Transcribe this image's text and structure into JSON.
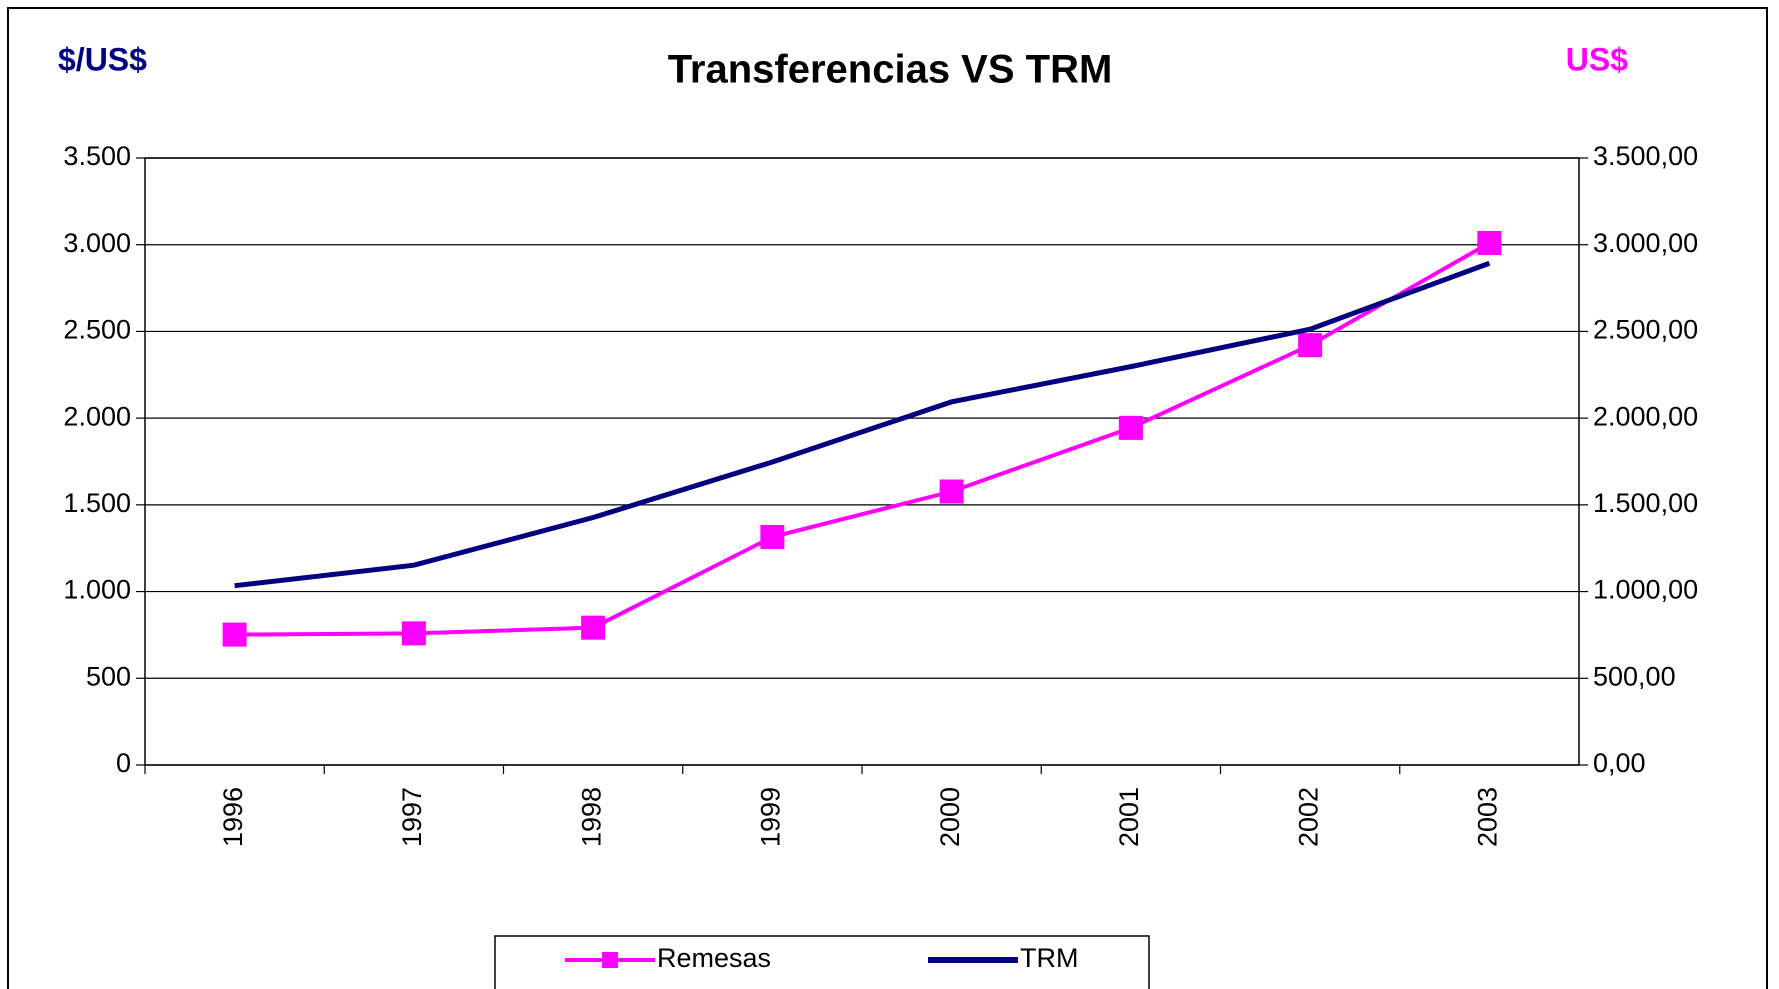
{
  "chart_data": {
    "type": "line",
    "title": "Transferencias VS TRM",
    "y_label": "$/US$",
    "y2_label": "US$",
    "categories": [
      "1996",
      "1997",
      "1998",
      "1999",
      "2000",
      "2001",
      "2002",
      "2003"
    ],
    "series": [
      {
        "name": "Remesas",
        "color": "#ff00ff",
        "axis": "y2",
        "marker": "square",
        "values": [
          752,
          759,
          792,
          1315,
          1577,
          1944,
          2421,
          3010
        ]
      },
      {
        "name": "TRM",
        "color": "#000080",
        "axis": "y",
        "values": [
          1034,
          1152,
          1427,
          1747,
          2094,
          2297,
          2513,
          2893
        ]
      }
    ],
    "ylim": [
      0,
      3500
    ],
    "yticks": [
      0,
      500,
      {
        "value": 1000,
        "label": "1.000"
      },
      {
        "value": 1500,
        "label": "1.500"
      },
      {
        "value": 2000,
        "label": "2.000"
      },
      {
        "value": 2500,
        "label": "2.500"
      },
      {
        "value": 3000,
        "label": "3.000"
      },
      {
        "value": 3500,
        "label": "3.500"
      }
    ],
    "y2lim": [
      0,
      3500
    ],
    "y2ticks": [
      {
        "value": 0,
        "label": "0,00"
      },
      {
        "value": 500,
        "label": "500,00"
      },
      {
        "value": 1000,
        "label": "1.000,00"
      },
      {
        "value": 1500,
        "label": "1.500,00"
      },
      {
        "value": 2000,
        "label": "2.000,00"
      },
      {
        "value": 2500,
        "label": "2.500,00"
      },
      {
        "value": 3000,
        "label": "3.000,00"
      },
      {
        "value": 3500,
        "label": "3.500,00"
      }
    ],
    "grid": true,
    "legend": "bottom"
  }
}
